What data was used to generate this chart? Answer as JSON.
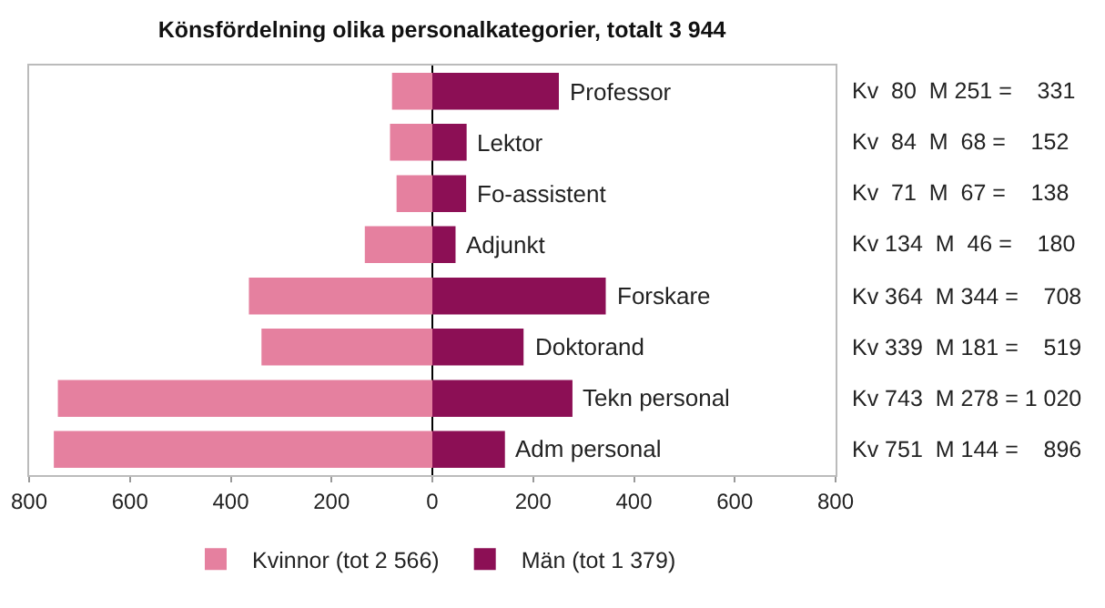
{
  "chart_data": {
    "type": "bar",
    "orientation": "horizontal",
    "stacked": true,
    "title": "Könsfördelning olika personalkategorier, totalt 3 944",
    "categories": [
      "Professor",
      "Lektor",
      "Fo-assistent",
      "Adjunkt",
      "Forskare",
      "Doktorand",
      "Tekn personal",
      "Adm personal"
    ],
    "series": [
      {
        "name": "Kvinnor (tot 2 566)",
        "color": "#e5809f",
        "values": [
          -80,
          -84,
          -71,
          -134,
          -364,
          -339,
          -743,
          -751
        ]
      },
      {
        "name": "Män (tot 1 379)",
        "color": "#8c0f55",
        "values": [
          251,
          68,
          67,
          46,
          344,
          181,
          278,
          144
        ]
      }
    ],
    "xlim": [
      -800,
      800
    ],
    "xticks": [
      {
        "value": -800,
        "label": "800"
      },
      {
        "value": -600,
        "label": "600"
      },
      {
        "value": -400,
        "label": "400"
      },
      {
        "value": -200,
        "label": "200"
      },
      0,
      200,
      400,
      600,
      800
    ],
    "tick_labels": "x",
    "grid": false,
    "legend": "bottom",
    "annotations": [
      "Kv  80  M 251 =    331",
      "Kv  84  M  68 =    152",
      "Kv  71  M  67 =    138",
      "Kv 134  M  46 =    180",
      "Kv 364  M 344 =    708",
      "Kv 339  M 181 =    519",
      "Kv 743  M 278 = 1 020",
      "Kv 751  M 144 =    896"
    ]
  }
}
